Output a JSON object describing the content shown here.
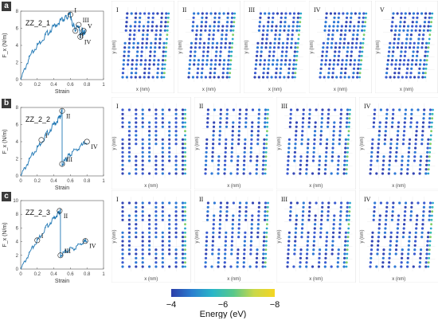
{
  "panels": [
    {
      "letter": "a",
      "title": "ZZ_2_1",
      "ylabel": "F_x (N/m)",
      "xlabel": "Strain",
      "yticks": [
        "0",
        "2",
        "4",
        "6",
        "8"
      ],
      "xticks": [
        "0",
        "0.2",
        "0.4",
        "0.6",
        "0.8",
        "1"
      ],
      "markers": [
        "I",
        "II",
        "III",
        "IV",
        "V"
      ],
      "snapshot_labels": [
        "I",
        "II",
        "III",
        "IV",
        "V"
      ],
      "snapshot_axis": {
        "x": "x (nm)",
        "y": "y (nm)"
      }
    },
    {
      "letter": "b",
      "title": "ZZ_2_2",
      "ylabel": "F_x (N/m)",
      "xlabel": "Strain",
      "yticks": [
        "0",
        "2",
        "4",
        "6",
        "8"
      ],
      "xticks": [
        "0",
        "0.2",
        "0.4",
        "0.6",
        "0.8",
        "1"
      ],
      "markers": [
        "I",
        "II",
        "III",
        "IV"
      ],
      "snapshot_labels": [
        "I",
        "II",
        "III",
        "IV"
      ],
      "snapshot_axis": {
        "x": "x (nm)",
        "y": "y (nm)"
      }
    },
    {
      "letter": "c",
      "title": "ZZ_2_3",
      "ylabel": "F_x (N/m)",
      "xlabel": "Strain",
      "yticks": [
        "0",
        "2",
        "4",
        "6",
        "8",
        "10"
      ],
      "xticks": [
        "0",
        "0.2",
        "0.4",
        "0.6",
        "0.8",
        "1"
      ],
      "markers": [
        "I",
        "II",
        "III",
        "IV"
      ],
      "snapshot_labels": [
        "I",
        "II",
        "III",
        "IV"
      ],
      "snapshot_axis": {
        "x": "x (nm)",
        "y": "y (nm)"
      }
    }
  ],
  "colorbar": {
    "label": "Energy (eV)",
    "ticks": [
      "−4",
      "−6",
      "−8"
    ],
    "colors": [
      "#2c3ea8",
      "#2a7fd0",
      "#29b6c8",
      "#58c88a",
      "#c9d84a",
      "#f5d521"
    ]
  },
  "chart_data": [
    {
      "type": "line",
      "title": "ZZ_2_1",
      "xlabel": "Strain",
      "ylabel": "F_x (N/m)",
      "xlim": [
        0,
        1
      ],
      "ylim": [
        0,
        8
      ],
      "x": [
        0.0,
        0.1,
        0.2,
        0.3,
        0.4,
        0.5,
        0.55,
        0.6,
        0.62,
        0.66,
        0.7,
        0.72,
        0.74,
        0.76,
        0.78
      ],
      "y": [
        0.0,
        2.5,
        4.0,
        5.2,
        6.2,
        7.0,
        7.3,
        7.6,
        6.5,
        5.9,
        6.3,
        5.0,
        5.8,
        5.4,
        5.6
      ],
      "annotations": [
        {
          "label": "I",
          "x": 0.6,
          "y": 7.6
        },
        {
          "label": "II",
          "x": 0.66,
          "y": 5.7
        },
        {
          "label": "III",
          "x": 0.7,
          "y": 6.4
        },
        {
          "label": "IV",
          "x": 0.72,
          "y": 5.0
        },
        {
          "label": "V",
          "x": 0.76,
          "y": 5.7
        }
      ]
    },
    {
      "type": "line",
      "title": "ZZ_2_2",
      "xlabel": "Strain",
      "ylabel": "F_x (N/m)",
      "xlim": [
        0,
        1
      ],
      "ylim": [
        0,
        8
      ],
      "x": [
        0.0,
        0.1,
        0.2,
        0.3,
        0.4,
        0.47,
        0.5,
        0.5,
        0.55,
        0.6,
        0.7,
        0.8
      ],
      "y": [
        0.0,
        1.8,
        3.3,
        4.7,
        6.0,
        6.8,
        7.6,
        1.4,
        1.9,
        2.6,
        3.2,
        4.0
      ],
      "annotations": [
        {
          "label": "I",
          "x": 0.25,
          "y": 4.2
        },
        {
          "label": "II",
          "x": 0.5,
          "y": 7.6
        },
        {
          "label": "III",
          "x": 0.5,
          "y": 1.4
        },
        {
          "label": "IV",
          "x": 0.8,
          "y": 4.0
        }
      ]
    },
    {
      "type": "line",
      "title": "ZZ_2_3",
      "xlabel": "Strain",
      "ylabel": "F_x (N/m)",
      "xlim": [
        0,
        1
      ],
      "ylim": [
        0,
        10
      ],
      "x": [
        0.0,
        0.1,
        0.2,
        0.3,
        0.4,
        0.46,
        0.48,
        0.48,
        0.55,
        0.65,
        0.75,
        0.8
      ],
      "y": [
        0.0,
        2.2,
        4.2,
        6.0,
        7.4,
        8.2,
        8.5,
        2.0,
        2.6,
        3.1,
        3.8,
        4.2
      ],
      "annotations": [
        {
          "label": "I",
          "x": 0.2,
          "y": 4.2
        },
        {
          "label": "II",
          "x": 0.47,
          "y": 8.5
        },
        {
          "label": "III",
          "x": 0.48,
          "y": 2.0
        },
        {
          "label": "IV",
          "x": 0.78,
          "y": 4.1
        }
      ]
    }
  ]
}
